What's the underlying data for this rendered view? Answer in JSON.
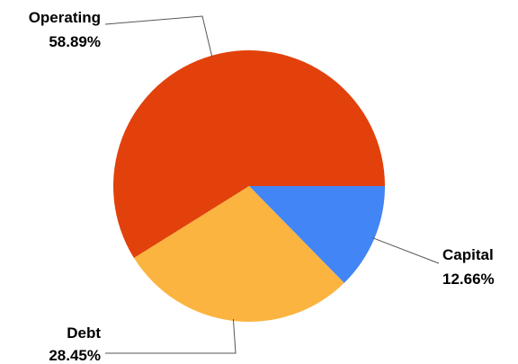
{
  "chart_data": {
    "type": "pie",
    "slices": [
      {
        "label": "Capital",
        "percent_text": "12.66%",
        "value": 12.66,
        "color": "#4285f4"
      },
      {
        "label": "Debt",
        "percent_text": "28.45%",
        "value": 28.45,
        "color": "#fbb440"
      },
      {
        "label": "Operating",
        "percent_text": "58.89%",
        "value": 58.89,
        "color": "#e2410b"
      }
    ],
    "legend": "none",
    "start_angle": "3 o'clock",
    "direction": "clockwise"
  }
}
